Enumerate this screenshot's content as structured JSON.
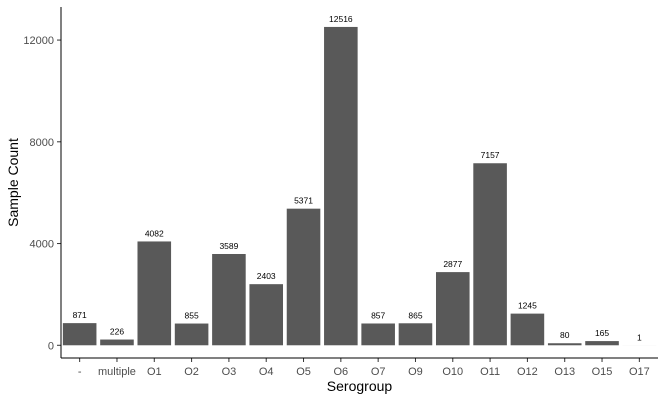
{
  "chart_data": {
    "type": "bar",
    "title": "",
    "xlabel": "Serogroup",
    "ylabel": "Sample Count",
    "categories": [
      "-",
      "multiple",
      "O1",
      "O2",
      "O3",
      "O4",
      "O5",
      "O6",
      "O7",
      "O9",
      "O10",
      "O11",
      "O12",
      "O13",
      "O15",
      "O17"
    ],
    "values": [
      871,
      226,
      4082,
      855,
      3589,
      2403,
      5371,
      12516,
      857,
      865,
      2877,
      7157,
      1245,
      80,
      165,
      1
    ],
    "data_labels": [
      "871",
      "226",
      "4082",
      "855",
      "3589",
      "2403",
      "5371",
      "12516",
      "857",
      "865",
      "2877",
      "7157",
      "1245",
      "80",
      "165",
      "1"
    ],
    "yticks": [
      0,
      4000,
      8000,
      12000
    ],
    "ytick_labels": [
      "0",
      "4000",
      "8000",
      "12000"
    ],
    "ylim": [
      -500,
      13300
    ],
    "grid": false,
    "legend": "none",
    "bar_color": "#595959"
  }
}
